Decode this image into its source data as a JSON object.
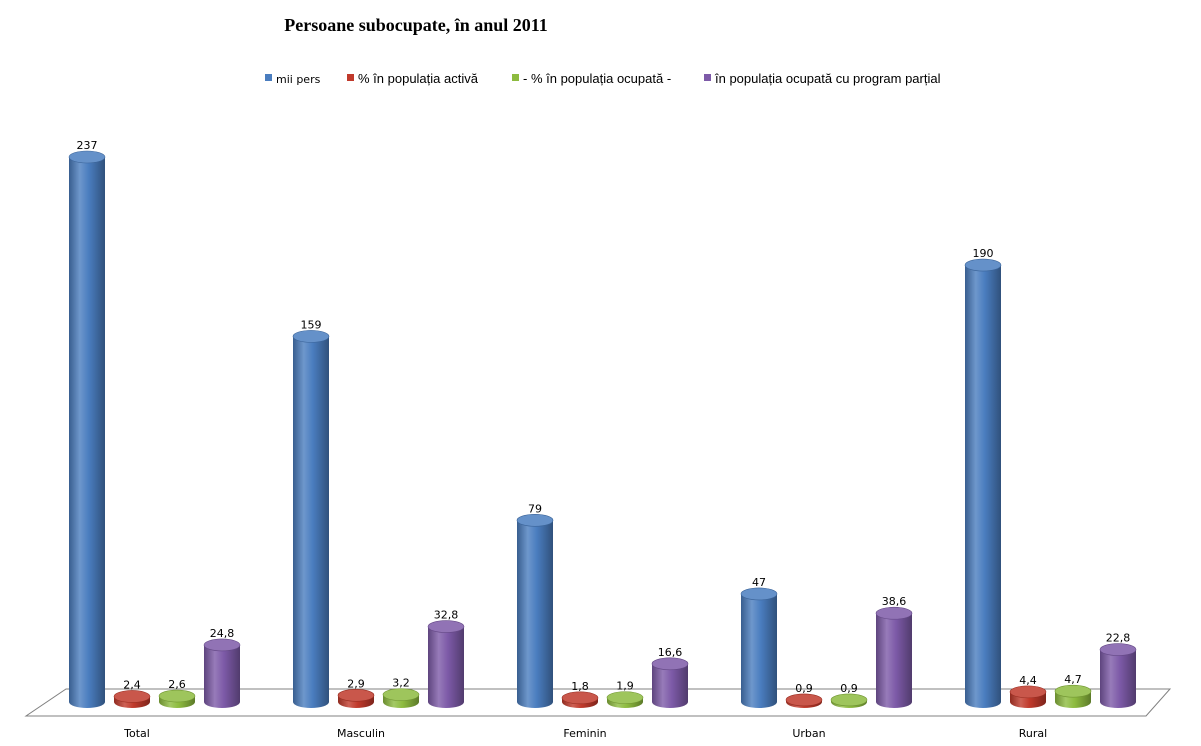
{
  "chart_data": {
    "type": "bar",
    "title": "Persoane subocupate, în anul 2011",
    "categories": [
      "Total",
      "Masculin",
      "Feminin",
      "Urban",
      "Rural"
    ],
    "series": [
      {
        "name": "mii pers",
        "values": [
          237,
          159,
          79,
          47,
          190
        ],
        "labels": [
          "237",
          "159",
          "79",
          "47",
          "190"
        ],
        "color": "#4a7dbf"
      },
      {
        "name": "% în populația activă",
        "values": [
          2.4,
          2.9,
          1.8,
          0.9,
          4.4
        ],
        "labels": [
          "2,4",
          "2,9",
          "1,8",
          "0,9",
          "4,4"
        ],
        "color": "#c0392b"
      },
      {
        "name": "- % în populația ocupată -",
        "values": [
          2.6,
          3.2,
          1.9,
          0.9,
          4.7
        ],
        "labels": [
          "2,6",
          "3,2",
          "1,9",
          "0,9",
          "4,7"
        ],
        "color": "#8dbb3f"
      },
      {
        "name": "în populația ocupată cu program parțial",
        "values": [
          24.8,
          32.8,
          16.6,
          38.6,
          22.8
        ],
        "labels": [
          "24,8",
          "32,8",
          "16,6",
          "38,6",
          "22,8"
        ],
        "color": "#7d5aa8"
      }
    ],
    "legend_position": "top",
    "grid": false,
    "style": "3d-cylinder"
  }
}
